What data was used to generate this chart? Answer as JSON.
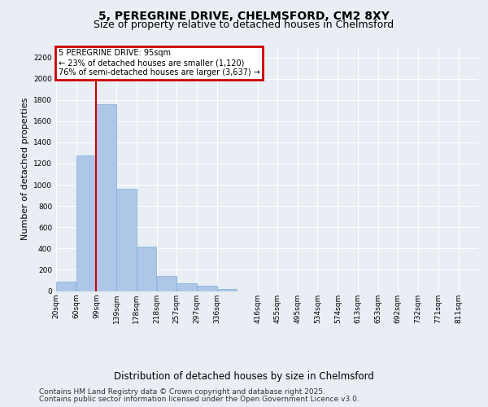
{
  "title1": "5, PEREGRINE DRIVE, CHELMSFORD, CM2 8XY",
  "title2": "Size of property relative to detached houses in Chelmsford",
  "xlabel": "Distribution of detached houses by size in Chelmsford",
  "ylabel": "Number of detached properties",
  "bins": [
    "20sqm",
    "60sqm",
    "99sqm",
    "139sqm",
    "178sqm",
    "218sqm",
    "257sqm",
    "297sqm",
    "336sqm",
    "416sqm",
    "455sqm",
    "495sqm",
    "534sqm",
    "574sqm",
    "613sqm",
    "653sqm",
    "692sqm",
    "732sqm",
    "771sqm",
    "811sqm"
  ],
  "bin_lefts": [
    20,
    60,
    99,
    139,
    178,
    218,
    257,
    297,
    336,
    416,
    455,
    495,
    534,
    574,
    613,
    653,
    692,
    732,
    771,
    811
  ],
  "bin_widths": [
    39,
    39,
    39,
    39,
    39,
    39,
    39,
    39,
    39,
    39,
    39,
    39,
    39,
    39,
    39,
    39,
    39,
    39,
    39,
    39
  ],
  "bar_heights": [
    90,
    1280,
    1760,
    960,
    420,
    140,
    75,
    50,
    20,
    0,
    0,
    0,
    0,
    0,
    0,
    0,
    0,
    0,
    0,
    0
  ],
  "bar_color": "#aec6e8",
  "bar_edge_color": "#7aafd4",
  "property_line_x": 99,
  "annotation_title": "5 PEREGRINE DRIVE: 95sqm",
  "annotation_line1": "← 23% of detached houses are smaller (1,120)",
  "annotation_line2": "76% of semi-detached houses are larger (3,637) →",
  "annotation_box_color": "#cc0000",
  "vline_color": "#cc0000",
  "ylim": [
    0,
    2300
  ],
  "yticks": [
    0,
    200,
    400,
    600,
    800,
    1000,
    1200,
    1400,
    1600,
    1800,
    2000,
    2200
  ],
  "bg_color": "#e8eef4",
  "plot_bg_color": "#e8eef4",
  "grid_color": "#ffffff",
  "footer1": "Contains HM Land Registry data © Crown copyright and database right 2025.",
  "footer2": "Contains public sector information licensed under the Open Government Licence v3.0.",
  "title1_fontsize": 10,
  "title2_fontsize": 9,
  "xlabel_fontsize": 8.5,
  "ylabel_fontsize": 8,
  "tick_fontsize": 6.5,
  "footer_fontsize": 6.5
}
